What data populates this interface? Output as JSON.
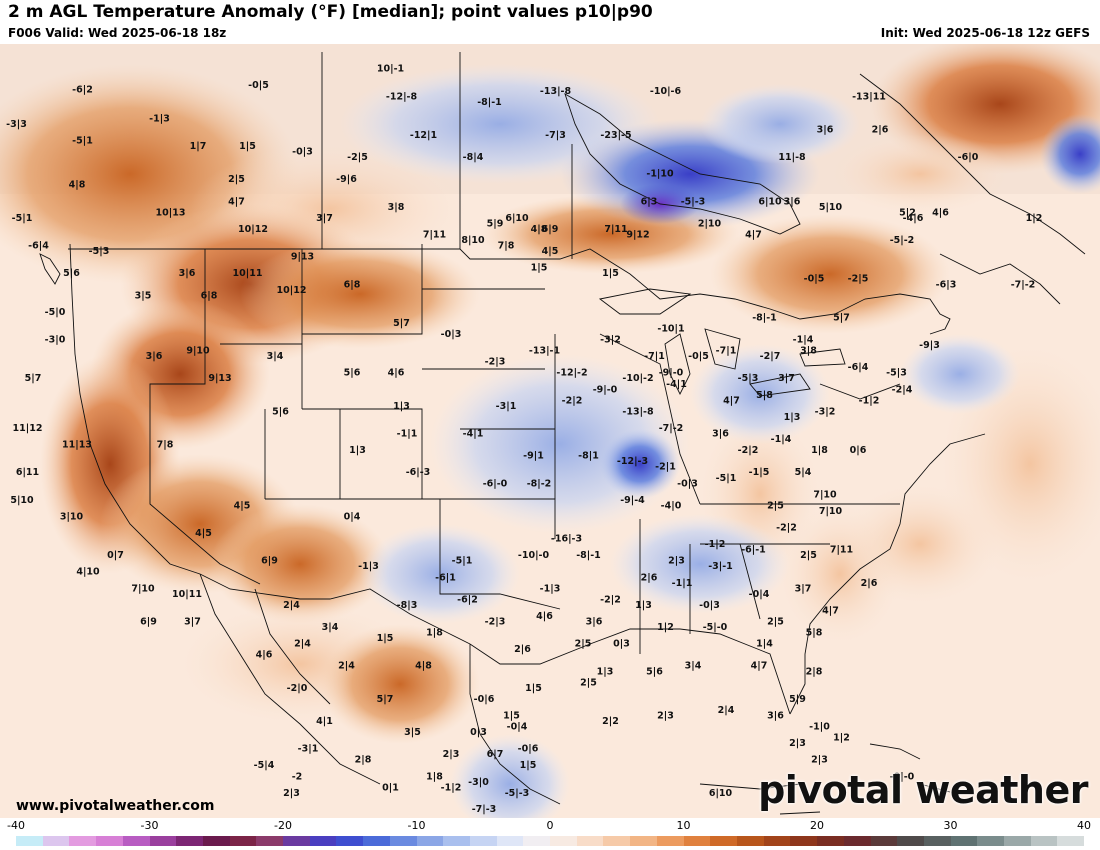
{
  "header": {
    "title": "2 m AGL Temperature Anomaly (°F) [median]; point values p10|p90",
    "valid": "F006 Valid: Wed 2025-06-18 18z",
    "init": "Init: Wed 2025-06-18 12z GEFS"
  },
  "footer": {
    "site": "www.pivotalweather.com",
    "brand": "pivotal weather"
  },
  "scale": {
    "labels": [
      "-40",
      "-30",
      "-20",
      "-10",
      "0",
      "10",
      "20",
      "30",
      "40"
    ],
    "colors": [
      "#c6ecf7",
      "#dcc6ee",
      "#e39be0",
      "#d77fd6",
      "#b85cc2",
      "#9a3f9e",
      "#7c2674",
      "#6a1a4d",
      "#7b2447",
      "#8b3a6a",
      "#6a3aa0",
      "#4a3ec0",
      "#3e4ed0",
      "#4b6bd9",
      "#6a8ae0",
      "#8ba6e6",
      "#a9bfee",
      "#c6d4f3",
      "#dfe6f7",
      "#f1eef2",
      "#f7eae2",
      "#f8dcc8",
      "#f6caa8",
      "#f2b585",
      "#ec9b5f",
      "#e0813e",
      "#cf6a28",
      "#b8561c",
      "#a2441a",
      "#8e361c",
      "#7a2d22",
      "#6b2a2e",
      "#5a3a3a",
      "#4f4a4a",
      "#586060",
      "#5f7272",
      "#7a8c8c",
      "#9aa8a8",
      "#b9c3c3",
      "#d6dcdc"
    ]
  },
  "point_values": [
    {
      "label": "-6|2",
      "lon": -132.5,
      "lat": 57.6
    },
    {
      "label": "-0|5",
      "lon": -116.5,
      "lat": 58.0
    },
    {
      "label": "10|-1",
      "lon": -104.5,
      "lat": 59.5
    },
    {
      "label": "-12|-8",
      "lon": -103.5,
      "lat": 57.0
    },
    {
      "label": "-8|-1",
      "lon": -95.5,
      "lat": 56.5
    },
    {
      "label": "-13|-8",
      "lon": -89.5,
      "lat": 57.5
    },
    {
      "label": "-10|-6",
      "lon": -79.5,
      "lat": 57.5
    },
    {
      "label": "-13|11",
      "lon": -61.0,
      "lat": 57.0
    },
    {
      "label": "-3|3",
      "lon": -138.5,
      "lat": 54.5
    },
    {
      "label": "-1|3",
      "lon": -125.5,
      "lat": 55.0
    },
    {
      "label": "-5|1",
      "lon": -132.5,
      "lat": 53.0
    },
    {
      "label": "-12|1",
      "lon": -101.5,
      "lat": 53.5
    },
    {
      "label": "-7|3",
      "lon": -89.5,
      "lat": 53.5
    },
    {
      "label": "-23|-5",
      "lon": -84.0,
      "lat": 53.5
    },
    {
      "label": "3|6",
      "lon": -65.0,
      "lat": 54.0
    },
    {
      "label": "2|6",
      "lon": -60.0,
      "lat": 54.0
    },
    {
      "label": "1|7",
      "lon": -122.0,
      "lat": 52.5
    },
    {
      "label": "1|5",
      "lon": -117.5,
      "lat": 52.5
    },
    {
      "label": "-0|3",
      "lon": -112.5,
      "lat": 52.0
    },
    {
      "label": "-2|5",
      "lon": -107.5,
      "lat": 51.5
    },
    {
      "label": "-8|4",
      "lon": -97.0,
      "lat": 51.5
    },
    {
      "label": "11|-8",
      "lon": -68.0,
      "lat": 51.5
    },
    {
      "label": "-6|0",
      "lon": -52.0,
      "lat": 51.5
    },
    {
      "label": "4|8",
      "lon": -133.0,
      "lat": 49.0
    },
    {
      "label": "2|5",
      "lon": -118.5,
      "lat": 49.5
    },
    {
      "label": "-9|6",
      "lon": -108.5,
      "lat": 49.5
    },
    {
      "label": "-1|10",
      "lon": -80.0,
      "lat": 50.0
    },
    {
      "label": "4|7",
      "lon": -118.5,
      "lat": 47.5
    },
    {
      "label": "10|13",
      "lon": -124.5,
      "lat": 46.5
    },
    {
      "label": "3|8",
      "lon": -104.0,
      "lat": 47.0
    },
    {
      "label": "3|7",
      "lon": -110.5,
      "lat": 46.0
    },
    {
      "label": "10|12",
      "lon": -117.0,
      "lat": 45.0
    },
    {
      "label": "5|9",
      "lon": -95.0,
      "lat": 45.5
    },
    {
      "label": "4|8",
      "lon": -91.0,
      "lat": 45.0
    },
    {
      "label": "7|11",
      "lon": -84.0,
      "lat": 45.0
    },
    {
      "label": "3|6",
      "lon": -68.0,
      "lat": 47.5
    },
    {
      "label": "-4|6",
      "lon": -57.0,
      "lat": 46.0
    },
    {
      "label": "1|2",
      "lon": -46.0,
      "lat": 46.0
    },
    {
      "label": "-5|1",
      "lon": -138.0,
      "lat": 46.0
    },
    {
      "label": "-6|4",
      "lon": -136.5,
      "lat": 43.5
    },
    {
      "label": "-5|3",
      "lon": -131.0,
      "lat": 43.0
    },
    {
      "label": "5|6",
      "lon": -133.5,
      "lat": 41.0
    },
    {
      "label": "3|6",
      "lon": -123.0,
      "lat": 41.0
    },
    {
      "label": "3|5",
      "lon": -127.0,
      "lat": 39.0
    },
    {
      "label": "6|8",
      "lon": -121.0,
      "lat": 39.0
    },
    {
      "label": "9|13",
      "lon": -112.5,
      "lat": 42.5
    },
    {
      "label": "10|11",
      "lon": -117.5,
      "lat": 41.0
    },
    {
      "label": "7|11",
      "lon": -100.5,
      "lat": 44.5
    },
    {
      "label": "6|10",
      "lon": -93.0,
      "lat": 46.0
    },
    {
      "label": "6|9",
      "lon": -90.0,
      "lat": 45.0
    },
    {
      "label": "8|10",
      "lon": -97.0,
      "lat": 44.0
    },
    {
      "label": "7|8",
      "lon": -94.0,
      "lat": 43.5
    },
    {
      "label": "4|5",
      "lon": -90.0,
      "lat": 43.0
    },
    {
      "label": "6|3",
      "lon": -81.0,
      "lat": 47.5
    },
    {
      "label": "-5|-3",
      "lon": -77.0,
      "lat": 47.5
    },
    {
      "label": "6|10",
      "lon": -70.0,
      "lat": 47.5
    },
    {
      "label": "5|10",
      "lon": -64.5,
      "lat": 47.0
    },
    {
      "label": "5|2",
      "lon": -57.5,
      "lat": 46.5
    },
    {
      "label": "4|6",
      "lon": -54.5,
      "lat": 46.5
    },
    {
      "label": "9|12",
      "lon": -82.0,
      "lat": 44.5
    },
    {
      "label": "2|10",
      "lon": -75.5,
      "lat": 45.5
    },
    {
      "label": "4|7",
      "lon": -71.5,
      "lat": 44.5
    },
    {
      "label": "-5|-2",
      "lon": -58.0,
      "lat": 44.0
    },
    {
      "label": "-5|0",
      "lon": -135.0,
      "lat": 37.5
    },
    {
      "label": "10|12",
      "lon": -113.5,
      "lat": 39.5
    },
    {
      "label": "6|8",
      "lon": -108.0,
      "lat": 40.0
    },
    {
      "label": "1|5",
      "lon": -91.0,
      "lat": 41.5
    },
    {
      "label": "1|5",
      "lon": -84.5,
      "lat": 41.0
    },
    {
      "label": "-0|5",
      "lon": -66.0,
      "lat": 40.5
    },
    {
      "label": "-2|5",
      "lon": -62.0,
      "lat": 40.5
    },
    {
      "label": "-6|3",
      "lon": -54.0,
      "lat": 40.0
    },
    {
      "label": "-7|-2",
      "lon": -47.0,
      "lat": 40.0
    },
    {
      "label": "-3|0",
      "lon": -135.0,
      "lat": 35.0
    },
    {
      "label": "3|6",
      "lon": -126.0,
      "lat": 33.5
    },
    {
      "label": "9|10",
      "lon": -122.0,
      "lat": 34.0
    },
    {
      "label": "3|4",
      "lon": -115.0,
      "lat": 33.5
    },
    {
      "label": "5|7",
      "lon": -103.5,
      "lat": 36.5
    },
    {
      "label": "-0|3",
      "lon": -99.0,
      "lat": 35.5
    },
    {
      "label": "-13|-1",
      "lon": -90.5,
      "lat": 34.0
    },
    {
      "label": "-3|2",
      "lon": -84.5,
      "lat": 35.0
    },
    {
      "label": "-10|1",
      "lon": -79.0,
      "lat": 36.0
    },
    {
      "label": "-8|-1",
      "lon": -70.5,
      "lat": 37.0
    },
    {
      "label": "-1|4",
      "lon": -67.0,
      "lat": 35.0
    },
    {
      "label": "5|7",
      "lon": -63.5,
      "lat": 37.0
    },
    {
      "label": "5|7",
      "lon": -137.0,
      "lat": 31.5
    },
    {
      "label": "9|13",
      "lon": -120.0,
      "lat": 31.5
    },
    {
      "label": "5|6",
      "lon": -108.0,
      "lat": 32.0
    },
    {
      "label": "4|6",
      "lon": -104.0,
      "lat": 32.0
    },
    {
      "label": "-2|3",
      "lon": -95.0,
      "lat": 33.0
    },
    {
      "label": "-12|-2",
      "lon": -88.0,
      "lat": 32.0
    },
    {
      "label": "-7|1",
      "lon": -80.5,
      "lat": 33.5
    },
    {
      "label": "-0|5",
      "lon": -76.5,
      "lat": 33.5
    },
    {
      "label": "-7|1",
      "lon": -74.0,
      "lat": 34.0
    },
    {
      "label": "-2|7",
      "lon": -70.0,
      "lat": 33.5
    },
    {
      "label": "3|8",
      "lon": -66.5,
      "lat": 34.0
    },
    {
      "label": "-6|4",
      "lon": -62.0,
      "lat": 32.5
    },
    {
      "label": "-5|3",
      "lon": -58.5,
      "lat": 32.0
    },
    {
      "label": "-9|3",
      "lon": -55.5,
      "lat": 34.5
    },
    {
      "label": "-9|-0",
      "lon": -85.0,
      "lat": 30.5
    },
    {
      "label": "-10|-2",
      "lon": -82.0,
      "lat": 31.5
    },
    {
      "label": "-9|-0",
      "lon": -79.0,
      "lat": 32.0
    },
    {
      "label": "-4|1",
      "lon": -78.5,
      "lat": 31.0
    },
    {
      "label": "-5|3",
      "lon": -72.0,
      "lat": 31.5
    },
    {
      "label": "3|7",
      "lon": -68.5,
      "lat": 31.5
    },
    {
      "label": "-2|4",
      "lon": -58.0,
      "lat": 30.5
    },
    {
      "label": "11|12",
      "lon": -137.5,
      "lat": 27.0
    },
    {
      "label": "-3|1",
      "lon": -94.0,
      "lat": 29.0
    },
    {
      "label": "-2|2",
      "lon": -88.0,
      "lat": 29.5
    },
    {
      "label": "-13|-8",
      "lon": -82.0,
      "lat": 28.5
    },
    {
      "label": "-7|-2",
      "lon": -79.0,
      "lat": 27.0
    },
    {
      "label": "4|7",
      "lon": -73.5,
      "lat": 29.5
    },
    {
      "label": "5|8",
      "lon": -70.5,
      "lat": 30.0
    },
    {
      "label": "1|3",
      "lon": -68.0,
      "lat": 28.0
    },
    {
      "label": "-3|2",
      "lon": -65.0,
      "lat": 28.5
    },
    {
      "label": "-1|2",
      "lon": -61.0,
      "lat": 29.5
    },
    {
      "label": "11|13",
      "lon": -133.0,
      "lat": 25.5
    },
    {
      "label": "7|8",
      "lon": -125.0,
      "lat": 25.5
    },
    {
      "label": "5|6",
      "lon": -114.5,
      "lat": 28.5
    },
    {
      "label": "1|3",
      "lon": -103.5,
      "lat": 29.0
    },
    {
      "label": "-1|1",
      "lon": -103.0,
      "lat": 26.5
    },
    {
      "label": "-4|1",
      "lon": -97.0,
      "lat": 26.5
    },
    {
      "label": "1|3",
      "lon": -107.5,
      "lat": 25.0
    },
    {
      "label": "-9|1",
      "lon": -91.5,
      "lat": 24.5
    },
    {
      "label": "-8|1",
      "lon": -86.5,
      "lat": 24.5
    },
    {
      "label": "-12|-3",
      "lon": -82.5,
      "lat": 24.0
    },
    {
      "label": "-2|1",
      "lon": -79.5,
      "lat": 23.5
    },
    {
      "label": "3|6",
      "lon": -74.5,
      "lat": 26.5
    },
    {
      "label": "-2|2",
      "lon": -72.0,
      "lat": 25.0
    },
    {
      "label": "-1|4",
      "lon": -69.0,
      "lat": 26.0
    },
    {
      "label": "1|8",
      "lon": -65.5,
      "lat": 25.0
    },
    {
      "label": "0|6",
      "lon": -62.0,
      "lat": 25.0
    },
    {
      "label": "6|11",
      "lon": -137.5,
      "lat": 23.0
    },
    {
      "label": "-6|-3",
      "lon": -102.0,
      "lat": 23.0
    },
    {
      "label": "-6|-0",
      "lon": -95.0,
      "lat": 22.0
    },
    {
      "label": "-8|-2",
      "lon": -91.0,
      "lat": 22.0
    },
    {
      "label": "-0|3",
      "lon": -77.5,
      "lat": 22.0
    },
    {
      "label": "-5|1",
      "lon": -74.0,
      "lat": 22.5
    },
    {
      "label": "-1|5",
      "lon": -71.0,
      "lat": 23.0
    },
    {
      "label": "5|4",
      "lon": -67.0,
      "lat": 23.0
    },
    {
      "label": "5|10",
      "lon": -138.0,
      "lat": 20.5
    },
    {
      "label": "3|10",
      "lon": -133.5,
      "lat": 19.0
    },
    {
      "label": "4|5",
      "lon": -118.0,
      "lat": 20.0
    },
    {
      "label": "0|4",
      "lon": -108.0,
      "lat": 19.0
    },
    {
      "label": "-9|-4",
      "lon": -82.5,
      "lat": 20.5
    },
    {
      "label": "-4|0",
      "lon": -79.0,
      "lat": 20.0
    },
    {
      "label": "2|5",
      "lon": -69.5,
      "lat": 20.0
    },
    {
      "label": "7|10",
      "lon": -65.0,
      "lat": 21.0
    },
    {
      "label": "7|10",
      "lon": -64.5,
      "lat": 19.5
    },
    {
      "label": "4|5",
      "lon": -121.5,
      "lat": 17.5
    },
    {
      "label": "-16|-3",
      "lon": -88.5,
      "lat": 17.0
    },
    {
      "label": "-10|-0",
      "lon": -91.5,
      "lat": 15.5
    },
    {
      "label": "-5|1",
      "lon": -98.0,
      "lat": 15.0
    },
    {
      "label": "-8|-1",
      "lon": -86.5,
      "lat": 15.5
    },
    {
      "label": "-1|2",
      "lon": -75.0,
      "lat": 16.5
    },
    {
      "label": "-6|-1",
      "lon": -71.5,
      "lat": 16.0
    },
    {
      "label": "-2|2",
      "lon": -68.5,
      "lat": 18.0
    },
    {
      "label": "2|5",
      "lon": -66.5,
      "lat": 15.5
    },
    {
      "label": "7|11",
      "lon": -63.5,
      "lat": 16.0
    },
    {
      "label": "0|7",
      "lon": -129.5,
      "lat": 15.5
    },
    {
      "label": "6|9",
      "lon": -115.5,
      "lat": 15.0
    },
    {
      "label": "-1|3",
      "lon": -106.5,
      "lat": 14.5
    },
    {
      "label": "-6|1",
      "lon": -99.5,
      "lat": 13.5
    },
    {
      "label": "2|3",
      "lon": -78.5,
      "lat": 15.0
    },
    {
      "label": "-3|-1",
      "lon": -74.5,
      "lat": 14.5
    },
    {
      "label": "4|10",
      "lon": -132.0,
      "lat": 14.0
    },
    {
      "label": "2|6",
      "lon": -81.0,
      "lat": 13.5
    },
    {
      "label": "-1|1",
      "lon": -78.0,
      "lat": 13.0
    },
    {
      "label": "-0|4",
      "lon": -71.0,
      "lat": 12.0
    },
    {
      "label": "3|7",
      "lon": -67.0,
      "lat": 12.5
    },
    {
      "label": "2|6",
      "lon": -61.0,
      "lat": 13.0
    },
    {
      "label": "7|10",
      "lon": -127.0,
      "lat": 12.5
    },
    {
      "label": "10|11",
      "lon": -123.0,
      "lat": 12.0
    },
    {
      "label": "-1|3",
      "lon": -90.0,
      "lat": 12.5
    },
    {
      "label": "-2|2",
      "lon": -84.5,
      "lat": 11.5
    },
    {
      "label": "-6|2",
      "lon": -97.5,
      "lat": 11.5
    },
    {
      "label": "-8|3",
      "lon": -103.0,
      "lat": 11.0
    },
    {
      "label": "2|4",
      "lon": -113.5,
      "lat": 11.0
    },
    {
      "label": "1|3",
      "lon": -81.5,
      "lat": 11.0
    },
    {
      "label": "-0|3",
      "lon": -75.5,
      "lat": 11.0
    },
    {
      "label": "4|7",
      "lon": -64.5,
      "lat": 10.5
    },
    {
      "label": "6|9",
      "lon": -126.5,
      "lat": 9.5
    },
    {
      "label": "3|7",
      "lon": -122.5,
      "lat": 9.5
    },
    {
      "label": "3|4",
      "lon": -110.0,
      "lat": 9.0
    },
    {
      "label": "-2|3",
      "lon": -95.0,
      "lat": 9.5
    },
    {
      "label": "4|6",
      "lon": -90.5,
      "lat": 10.0
    },
    {
      "label": "3|6",
      "lon": -86.0,
      "lat": 9.5
    },
    {
      "label": "1|2",
      "lon": -79.5,
      "lat": 9.0
    },
    {
      "label": "-5|-0",
      "lon": -75.0,
      "lat": 9.0
    },
    {
      "label": "2|5",
      "lon": -69.5,
      "lat": 9.5
    },
    {
      "label": "5|8",
      "lon": -66.0,
      "lat": 8.5
    },
    {
      "label": "1|8",
      "lon": -100.5,
      "lat": 8.5
    },
    {
      "label": "2|4",
      "lon": -112.5,
      "lat": 7.5
    },
    {
      "label": "1|5",
      "lon": -105.0,
      "lat": 8.0
    },
    {
      "label": "2|6",
      "lon": -92.5,
      "lat": 7.0
    },
    {
      "label": "2|5",
      "lon": -87.0,
      "lat": 7.5
    },
    {
      "label": "0|3",
      "lon": -83.5,
      "lat": 7.5
    },
    {
      "label": "1|4",
      "lon": -70.5,
      "lat": 7.5
    },
    {
      "label": "4|6",
      "lon": -116.0,
      "lat": 6.5
    },
    {
      "label": "2|4",
      "lon": -108.5,
      "lat": 5.5
    },
    {
      "label": "4|8",
      "lon": -101.5,
      "lat": 5.5
    },
    {
      "label": "1|3",
      "lon": -85.0,
      "lat": 5.0
    },
    {
      "label": "5|6",
      "lon": -80.5,
      "lat": 5.0
    },
    {
      "label": "3|4",
      "lon": -77.0,
      "lat": 5.5
    },
    {
      "label": "4|7",
      "lon": -71.0,
      "lat": 5.5
    },
    {
      "label": "2|8",
      "lon": -66.0,
      "lat": 5.0
    },
    {
      "label": "2|5",
      "lon": -86.5,
      "lat": 4.0
    },
    {
      "label": "1|5",
      "lon": -91.5,
      "lat": 3.5
    },
    {
      "label": "-2|0",
      "lon": -113.0,
      "lat": 3.5
    },
    {
      "label": "-0|6",
      "lon": -96.0,
      "lat": 2.5
    },
    {
      "label": "5|7",
      "lon": -105.0,
      "lat": 2.5
    },
    {
      "label": "5|9",
      "lon": -67.5,
      "lat": 2.5
    },
    {
      "label": "4|1",
      "lon": -110.5,
      "lat": 0.5
    },
    {
      "label": "2|2",
      "lon": -84.5,
      "lat": 0.5
    },
    {
      "label": "2|3",
      "lon": -79.5,
      "lat": 1.0
    },
    {
      "label": "2|4",
      "lon": -74.0,
      "lat": 1.5
    },
    {
      "label": "3|6",
      "lon": -69.5,
      "lat": 1.0
    },
    {
      "label": "-1|0",
      "lon": -65.5,
      "lat": 0.0
    },
    {
      "label": "1|5",
      "lon": -93.5,
      "lat": 1.0
    },
    {
      "label": "-0|4",
      "lon": -93.0,
      "lat": 0.0
    },
    {
      "label": "3|5",
      "lon": -102.5,
      "lat": -0.5
    },
    {
      "label": "0|3",
      "lon": -96.5,
      "lat": -0.5
    },
    {
      "label": "2|3",
      "lon": -67.5,
      "lat": -1.5
    },
    {
      "label": "1|2",
      "lon": -63.5,
      "lat": -1.0
    },
    {
      "label": "-3|1",
      "lon": -112.0,
      "lat": -2.0
    },
    {
      "label": "2|8",
      "lon": -107.0,
      "lat": -3.0
    },
    {
      "label": "2|3",
      "lon": -99.0,
      "lat": -2.5
    },
    {
      "label": "6|7",
      "lon": -95.0,
      "lat": -2.5
    },
    {
      "label": "-0|6",
      "lon": -92.0,
      "lat": -2.0
    },
    {
      "label": "2|3",
      "lon": -65.5,
      "lat": -3.0
    },
    {
      "label": "-5|4",
      "lon": -116.0,
      "lat": -3.5
    },
    {
      "label": "-2",
      "lon": -113.0,
      "lat": -4.5
    },
    {
      "label": "1|5",
      "lon": -92.0,
      "lat": -3.5
    },
    {
      "label": "1|8",
      "lon": -100.5,
      "lat": -4.5
    },
    {
      "label": "-0|-0",
      "lon": -58.0,
      "lat": -4.5
    },
    {
      "label": "2|3",
      "lon": -113.5,
      "lat": -6.0
    },
    {
      "label": "0|1",
      "lon": -104.5,
      "lat": -5.5
    },
    {
      "label": "-1|2",
      "lon": -99.0,
      "lat": -5.5
    },
    {
      "label": "-3|0",
      "lon": -96.5,
      "lat": -5.0
    },
    {
      "label": "-5|-3",
      "lon": -93.0,
      "lat": -6.0
    },
    {
      "label": "6|10",
      "lon": -74.5,
      "lat": -6.0
    },
    {
      "label": "-7|-3",
      "lon": -96.0,
      "lat": -7.5
    }
  ]
}
